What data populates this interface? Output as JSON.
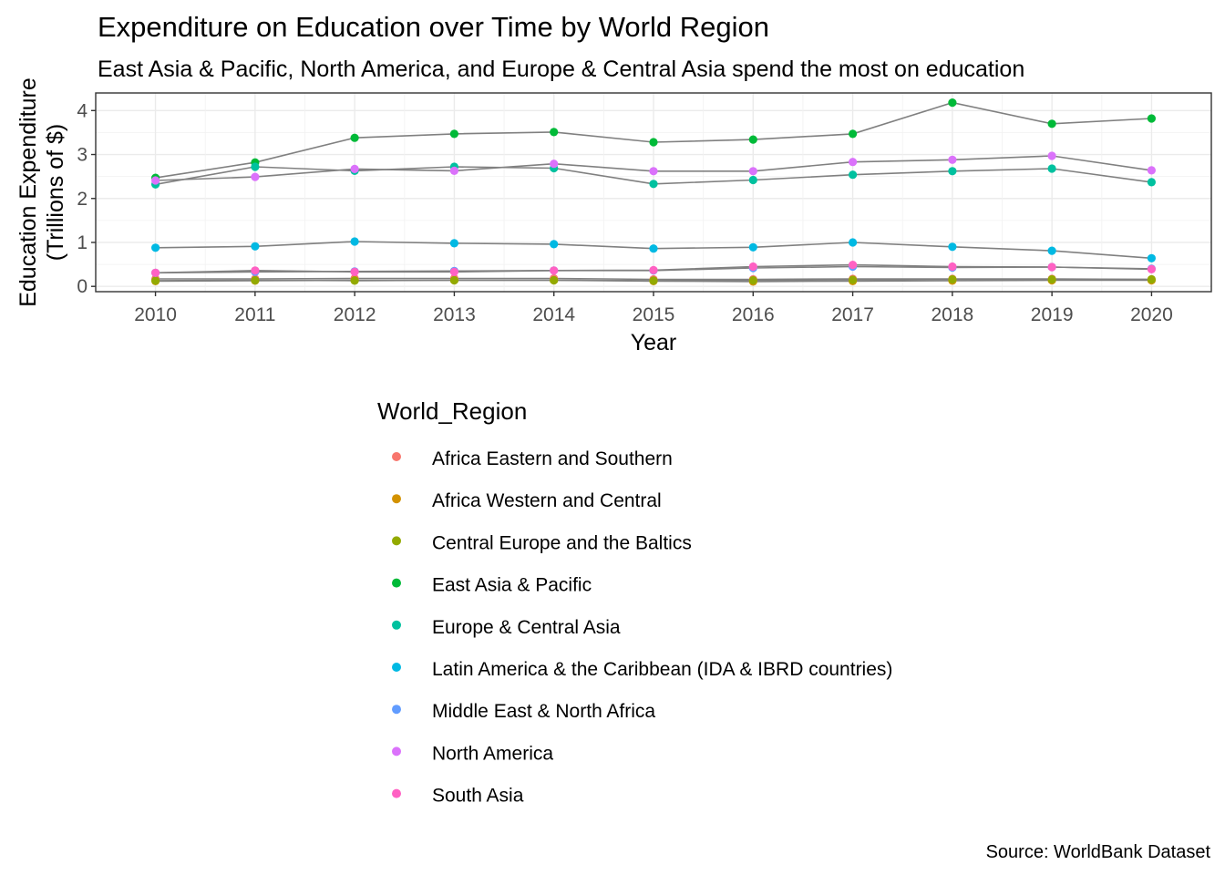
{
  "chart_data": {
    "type": "line",
    "title": "Expenditure on Education over Time by World Region",
    "subtitle": "East Asia & Pacific, North America, and Europe & Central Asia spend the most on education",
    "xlabel": "Year",
    "ylabel_lines": [
      "Education Expenditure",
      "(Trillions of $)"
    ],
    "caption": "Source: WorldBank Dataset",
    "legend_title": "World_Region",
    "legend_position": "bottom",
    "grid": true,
    "x": [
      2010,
      2011,
      2012,
      2013,
      2014,
      2015,
      2016,
      2017,
      2018,
      2019,
      2020
    ],
    "xlim": [
      2009.4,
      2020.6
    ],
    "ylim": [
      -0.12,
      4.4
    ],
    "yticks": [
      0,
      1,
      2,
      3,
      4
    ],
    "series": [
      {
        "name": "Africa Eastern and Southern",
        "color": "#F8766D",
        "values": [
          0.17,
          0.17,
          0.18,
          0.18,
          0.18,
          0.16,
          0.16,
          0.17,
          0.17,
          0.17,
          0.16
        ]
      },
      {
        "name": "Africa Western and Central",
        "color": "#D39200",
        "values": [
          0.12,
          0.13,
          0.14,
          0.14,
          0.14,
          0.12,
          0.11,
          0.12,
          0.13,
          0.14,
          0.14
        ]
      },
      {
        "name": "Central Europe and the Baltics",
        "color": "#93AA00",
        "values": [
          0.13,
          0.14,
          0.13,
          0.14,
          0.14,
          0.13,
          0.14,
          0.15,
          0.16,
          0.16,
          0.16
        ]
      },
      {
        "name": "East Asia & Pacific",
        "color": "#00BA38",
        "values": [
          2.47,
          2.82,
          3.38,
          3.47,
          3.51,
          3.28,
          3.34,
          3.47,
          4.18,
          3.7,
          3.82
        ]
      },
      {
        "name": "Europe & Central Asia",
        "color": "#00C19F",
        "values": [
          2.32,
          2.72,
          2.63,
          2.72,
          2.69,
          2.33,
          2.42,
          2.54,
          2.62,
          2.68,
          2.37
        ]
      },
      {
        "name": "Latin America & the Caribbean (IDA & IBRD countries)",
        "color": "#00B9E3",
        "values": [
          0.88,
          0.91,
          1.02,
          0.98,
          0.96,
          0.86,
          0.89,
          1.0,
          0.9,
          0.81,
          0.64
        ]
      },
      {
        "name": "Middle East & North Africa",
        "color": "#619CFF",
        "values": [
          0.31,
          0.33,
          0.34,
          0.35,
          0.36,
          0.36,
          0.42,
          0.45,
          0.43,
          0.44,
          0.4
        ]
      },
      {
        "name": "North America",
        "color": "#DB72FB",
        "values": [
          2.41,
          2.49,
          2.67,
          2.63,
          2.79,
          2.62,
          2.62,
          2.83,
          2.88,
          2.97,
          2.64
        ]
      },
      {
        "name": "South Asia",
        "color": "#FF61C3",
        "values": [
          0.31,
          0.36,
          0.33,
          0.33,
          0.36,
          0.37,
          0.45,
          0.49,
          0.45,
          0.44,
          0.39
        ]
      }
    ]
  }
}
